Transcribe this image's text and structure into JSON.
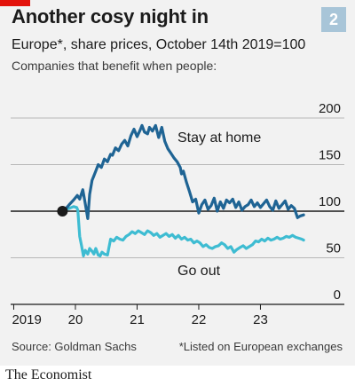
{
  "figure_number": "2",
  "source": "Source: Goldman Sachs",
  "footnote": "*Listed on European exchanges",
  "brand": "The Economist",
  "colors": {
    "stay_at_home": "#1f6494",
    "go_out": "#3ebcd2",
    "accent_red": "#e3120b",
    "background": "#f2f2f2",
    "baseline": "#1b1b1b"
  },
  "chart_data": {
    "type": "line",
    "title": "Another cosy night in",
    "subtitle": "Europe*, share prices, October 14th 2019=100",
    "description": "Companies that benefit when people:",
    "xlabel": "",
    "ylabel": "",
    "x_tick_labels": [
      "2019",
      "20",
      "21",
      "22",
      "23"
    ],
    "x_ticks": [
      2019.0,
      2020.0,
      2021.0,
      2022.0,
      2023.0
    ],
    "xlim": [
      2018.95,
      2023.9
    ],
    "y_ticks": [
      0,
      50,
      100,
      150,
      200
    ],
    "ylim": [
      0,
      200
    ],
    "y_axis_position": "right",
    "grid": "horizontal",
    "reference_line": 100,
    "start_point": {
      "x": 2019.79,
      "y": 100
    },
    "series": [
      {
        "name": "Stay at home",
        "x": [
          2019.79,
          2019.85,
          2019.9,
          2019.97,
          2020.03,
          2020.07,
          2020.12,
          2020.16,
          2020.2,
          2020.23,
          2020.27,
          2020.3,
          2020.33,
          2020.37,
          2020.42,
          2020.47,
          2020.52,
          2020.57,
          2020.6,
          2020.65,
          2020.7,
          2020.75,
          2020.8,
          2020.85,
          2020.9,
          2020.95,
          2021.0,
          2021.05,
          2021.08,
          2021.12,
          2021.17,
          2021.2,
          2021.25,
          2021.3,
          2021.35,
          2021.4,
          2021.45,
          2021.5,
          2021.55,
          2021.6,
          2021.65,
          2021.7,
          2021.72,
          2021.75,
          2021.8,
          2021.85,
          2021.9,
          2021.95,
          2022.0,
          2022.05,
          2022.1,
          2022.15,
          2022.2,
          2022.25,
          2022.3,
          2022.35,
          2022.4,
          2022.45,
          2022.5,
          2022.55,
          2022.6,
          2022.65,
          2022.7,
          2022.75,
          2022.8,
          2022.85,
          2022.9,
          2022.95,
          2023.0,
          2023.05,
          2023.1,
          2023.15,
          2023.2,
          2023.25,
          2023.3,
          2023.35,
          2023.4,
          2023.45,
          2023.5,
          2023.55,
          2023.6,
          2023.65,
          2023.7
        ],
        "values": [
          100,
          103,
          107,
          112,
          117,
          113,
          123,
          108,
          92,
          118,
          133,
          138,
          143,
          150,
          147,
          156,
          153,
          161,
          160,
          168,
          165,
          172,
          176,
          170,
          181,
          188,
          180,
          187,
          192,
          185,
          183,
          190,
          186,
          192,
          179,
          190,
          175,
          167,
          162,
          157,
          153,
          147,
          140,
          143,
          131,
          121,
          110,
          113,
          98,
          107,
          112,
          102,
          106,
          114,
          100,
          110,
          103,
          112,
          109,
          113,
          104,
          110,
          101,
          105,
          107,
          112,
          105,
          109,
          104,
          108,
          112,
          105,
          101,
          111,
          103,
          107,
          111,
          102,
          106,
          103,
          93,
          95,
          96
        ]
      },
      {
        "name": "Go out",
        "x": [
          2019.79,
          2019.85,
          2019.9,
          2019.97,
          2020.02,
          2020.04,
          2020.07,
          2020.1,
          2020.13,
          2020.16,
          2020.2,
          2020.23,
          2020.27,
          2020.3,
          2020.33,
          2020.37,
          2020.4,
          2020.43,
          2020.47,
          2020.52,
          2020.57,
          2020.62,
          2020.67,
          2020.72,
          2020.77,
          2020.82,
          2020.87,
          2020.92,
          2020.97,
          2021.02,
          2021.07,
          2021.12,
          2021.17,
          2021.22,
          2021.27,
          2021.32,
          2021.37,
          2021.42,
          2021.47,
          2021.52,
          2021.57,
          2021.62,
          2021.67,
          2021.72,
          2021.77,
          2021.82,
          2021.87,
          2021.92,
          2021.97,
          2022.02,
          2022.07,
          2022.12,
          2022.17,
          2022.22,
          2022.27,
          2022.32,
          2022.37,
          2022.42,
          2022.47,
          2022.52,
          2022.57,
          2022.62,
          2022.67,
          2022.72,
          2022.77,
          2022.82,
          2022.87,
          2022.92,
          2022.97,
          2023.02,
          2023.07,
          2023.12,
          2023.17,
          2023.22,
          2023.27,
          2023.32,
          2023.37,
          2023.42,
          2023.47,
          2023.52,
          2023.57,
          2023.62,
          2023.67,
          2023.7
        ],
        "values": [
          100,
          102,
          103,
          105,
          104,
          101,
          73,
          63,
          52,
          58,
          54,
          60,
          57,
          54,
          60,
          53,
          52,
          56,
          54,
          53,
          70,
          68,
          72,
          70,
          69,
          73,
          75,
          78,
          76,
          79,
          77,
          75,
          79,
          77,
          74,
          76,
          72,
          74,
          76,
          73,
          75,
          71,
          74,
          70,
          72,
          69,
          70,
          66,
          68,
          66,
          62,
          64,
          61,
          60,
          62,
          63,
          66,
          64,
          60,
          62,
          56,
          59,
          61,
          63,
          60,
          62,
          64,
          68,
          67,
          70,
          68,
          71,
          69,
          70,
          72,
          70,
          71,
          73,
          72,
          74,
          72,
          71,
          70,
          69
        ]
      }
    ],
    "annotations": [
      {
        "text": "Stay at home",
        "series": "Stay at home"
      },
      {
        "text": "Go out",
        "series": "Go out"
      }
    ]
  }
}
